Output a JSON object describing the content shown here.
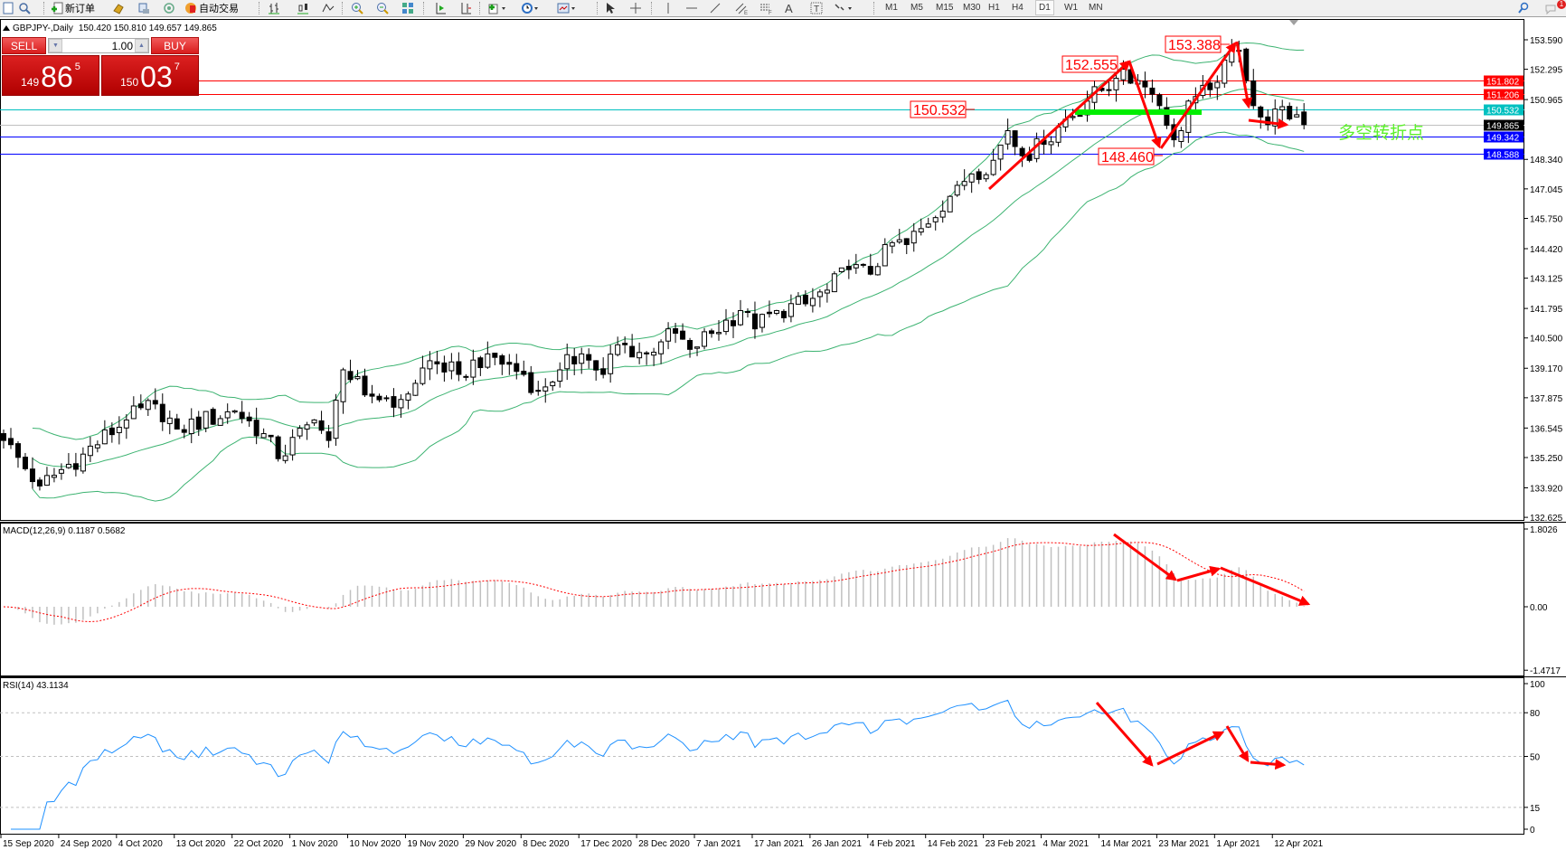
{
  "toolbar": {
    "new_order_label": "新订单",
    "auto_trading_label": "自动交易",
    "timeframes": [
      "M1",
      "M5",
      "M15",
      "M30",
      "H1",
      "H4",
      "D1",
      "W1",
      "MN"
    ],
    "active_timeframe": "D1",
    "notification_count": "1"
  },
  "chart": {
    "symbol_header": "GBPJPY-,Daily",
    "ohlc_text": "150.420 150.810 149.657 149.865"
  },
  "trade_panel": {
    "sell_label": "SELL",
    "buy_label": "BUY",
    "lot_value": "1.00",
    "sell_price": {
      "small": "149",
      "big": "86",
      "pip": "5"
    },
    "buy_price": {
      "small": "150",
      "big": "03",
      "pip": "7"
    }
  },
  "price_axis": [
    "153.590",
    "152.295",
    "150.965",
    "148.340",
    "147.045",
    "145.750",
    "144.420",
    "143.125",
    "141.795",
    "140.500",
    "139.170",
    "137.875",
    "136.545",
    "135.250",
    "133.920",
    "132.625"
  ],
  "price_lines": [
    {
      "value": 151.802,
      "label": "151.802",
      "color": "#ff0000"
    },
    {
      "value": 151.206,
      "label": "151.206",
      "color": "#ff0000"
    },
    {
      "value": 150.532,
      "label": "150.532",
      "color": "#00c0c0"
    },
    {
      "value": 149.865,
      "label": "149.865",
      "color": "#c0c0c0",
      "label_bg": "#000000"
    },
    {
      "value": 149.342,
      "label": "149.342",
      "color": "#0000ff"
    },
    {
      "value": 148.588,
      "label": "148.588",
      "color": "#0000ff"
    }
  ],
  "annotations": {
    "high_1": "152.555",
    "high_2": "153.388",
    "level_1": "150.532",
    "low_1": "148.460",
    "turning_point_text": "多空转折点",
    "turning_point_color": "#5cf02c",
    "arrow_color": "#ff0000",
    "support_bar_color": "#00ee00"
  },
  "macd": {
    "label": "MACD(12,26,9) 0.1187 0.5682",
    "axis": [
      "1.8026",
      "0.00",
      "-1.4717"
    ],
    "range": [
      -1.4717,
      1.8026
    ],
    "histogram_color": "#c0c0c0",
    "signal_color": "#ff0000"
  },
  "rsi": {
    "label": "RSI(14) 43.1134",
    "axis": [
      "100",
      "80",
      "50",
      "15",
      "0"
    ],
    "levels": [
      80,
      50,
      15
    ],
    "line_color": "#1e90ff"
  },
  "date_axis": [
    "15 Sep 2020",
    "24 Sep 2020",
    "4 Oct 2020",
    "13 Oct 2020",
    "22 Oct 2020",
    "1 Nov 2020",
    "10 Nov 2020",
    "19 Nov 2020",
    "29 Nov 2020",
    "8 Dec 2020",
    "17 Dec 2020",
    "28 Dec 2020",
    "7 Jan 2021",
    "17 Jan 2021",
    "26 Jan 2021",
    "4 Feb 2021",
    "14 Feb 2021",
    "23 Feb 2021",
    "4 Mar 2021",
    "14 Mar 2021",
    "23 Mar 2021",
    "1 Apr 2021",
    "12 Apr 2021"
  ],
  "chart_data": {
    "type": "candlestick",
    "symbol": "GBPJPY-",
    "timeframe": "Daily",
    "ylim": [
      132.625,
      153.59
    ],
    "bollinger": {
      "period": 20,
      "deviation": 2,
      "color": "#3cb371"
    },
    "last_bar": {
      "open": 150.42,
      "high": 150.81,
      "low": 149.657,
      "close": 149.865
    },
    "close_anchors": [
      [
        "2020-09-15",
        136.0
      ],
      [
        "2020-09-21",
        134.0
      ],
      [
        "2020-09-28",
        135.4
      ],
      [
        "2020-10-05",
        136.9
      ],
      [
        "2020-10-09",
        137.6
      ],
      [
        "2020-10-13",
        136.5
      ],
      [
        "2020-10-22",
        137.3
      ],
      [
        "2020-10-27",
        136.3
      ],
      [
        "2020-10-29",
        135.2
      ],
      [
        "2020-11-04",
        136.9
      ],
      [
        "2020-11-06",
        136.0
      ],
      [
        "2020-11-09",
        139.1
      ],
      [
        "2020-11-12",
        138.0
      ],
      [
        "2020-11-18",
        137.8
      ],
      [
        "2020-11-23",
        139.5
      ],
      [
        "2020-11-27",
        138.9
      ],
      [
        "2020-12-02",
        139.8
      ],
      [
        "2020-12-08",
        138.9
      ],
      [
        "2020-12-10",
        138.2
      ],
      [
        "2020-12-14",
        139.1
      ],
      [
        "2020-12-17",
        139.8
      ],
      [
        "2020-12-21",
        138.9
      ],
      [
        "2020-12-23",
        140.2
      ],
      [
        "2020-12-28",
        139.8
      ],
      [
        "2020-12-31",
        140.9
      ],
      [
        "2021-01-04",
        140.0
      ],
      [
        "2021-01-07",
        140.7
      ],
      [
        "2021-01-12",
        141.7
      ],
      [
        "2021-01-14",
        140.9
      ],
      [
        "2021-01-18",
        141.7
      ],
      [
        "2021-01-22",
        142.0
      ],
      [
        "2021-01-26",
        142.6
      ],
      [
        "2021-01-29",
        143.5
      ],
      [
        "2021-02-02",
        143.3
      ],
      [
        "2021-02-04",
        144.6
      ],
      [
        "2021-02-08",
        144.6
      ],
      [
        "2021-02-10",
        145.3
      ],
      [
        "2021-02-16",
        147.2
      ],
      [
        "2021-02-18",
        147.7
      ],
      [
        "2021-02-22",
        148.3
      ],
      [
        "2021-02-24",
        149.6
      ],
      [
        "2021-02-26",
        148.5
      ],
      [
        "2021-03-02",
        149.0
      ],
      [
        "2021-03-05",
        150.1
      ],
      [
        "2021-03-09",
        150.9
      ],
      [
        "2021-03-14",
        151.9
      ],
      [
        "2021-03-17",
        151.8
      ],
      [
        "2021-03-19",
        151.2
      ],
      [
        "2021-03-21",
        150.7
      ],
      [
        "2021-03-23",
        149.2
      ],
      [
        "2021-03-24",
        149.6
      ],
      [
        "2021-03-25",
        150.9
      ],
      [
        "2021-03-29",
        151.4
      ],
      [
        "2021-03-31",
        152.7
      ],
      [
        "2021-04-02",
        153.1
      ],
      [
        "2021-04-04",
        151.8
      ],
      [
        "2021-04-05",
        150.7
      ],
      [
        "2021-04-06",
        150.2
      ],
      [
        "2021-04-12",
        150.3
      ],
      [
        "2021-04-13",
        149.865
      ]
    ],
    "annotated_prices": [
      152.555,
      153.388,
      150.532,
      148.46
    ],
    "indicators": [
      "Bollinger Bands",
      "MACD(12,26,9)",
      "RSI(14)"
    ]
  }
}
